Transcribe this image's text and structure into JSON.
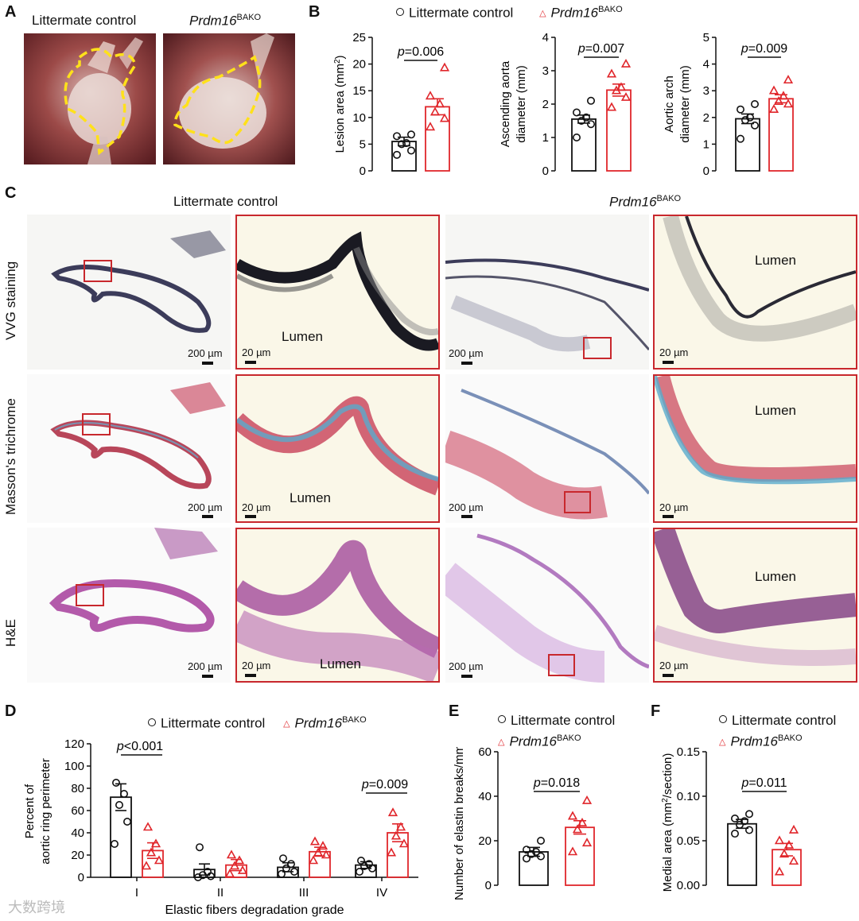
{
  "panels": {
    "A": "A",
    "B": "B",
    "C": "C",
    "D": "D",
    "E": "E",
    "F": "F"
  },
  "groups": {
    "control": "Littermate control",
    "ko_gene": "Prdm16",
    "ko_sup": "BAKO"
  },
  "colors": {
    "control": "#111111",
    "ko": "#e0262b",
    "box": "#c8282d"
  },
  "panelA": {
    "left_label": "Littermate control",
    "right_label_gene": "Prdm16",
    "right_label_sup": "BAKO"
  },
  "panelC": {
    "col_left": "Littermate control",
    "col_right_gene": "Prdm16",
    "col_right_sup": "BAKO",
    "rows": [
      "VVG staining",
      "Masson's trichrome",
      "H&E"
    ],
    "scale_low": "200 µm",
    "scale_high": "20 µm",
    "lumen": "Lumen"
  },
  "chart_data": [
    {
      "id": "B1",
      "type": "bar",
      "categories": [
        "Littermate control",
        "Prdm16BAKO"
      ],
      "values": [
        5.5,
        12.0
      ],
      "sem": [
        0.8,
        1.5
      ],
      "points": [
        [
          3.0,
          3.8,
          5.0,
          5.2,
          6.5,
          6.8
        ],
        [
          8.2,
          9.8,
          11.0,
          12.5,
          14.0,
          19.3
        ]
      ],
      "ylabel_main": "Lesion area (mm",
      "ylabel_sup": "2",
      "ylabel_end": ")",
      "ylim": [
        0,
        25
      ],
      "yticks": [
        "0",
        "5",
        "10",
        "15",
        "20",
        "25"
      ],
      "pvalue": "=0.006"
    },
    {
      "id": "B2",
      "type": "bar",
      "categories": [
        "Littermate control",
        "Prdm16BAKO"
      ],
      "values": [
        1.55,
        2.42
      ],
      "sem": [
        0.12,
        0.18
      ],
      "points": [
        [
          1.0,
          1.4,
          1.5,
          1.6,
          1.75,
          2.1
        ],
        [
          1.9,
          2.2,
          2.4,
          2.5,
          2.9,
          3.2
        ]
      ],
      "ylabel_main": "Ascending aorta",
      "ylabel_line2": "diameter (mm)",
      "ylim": [
        0,
        4
      ],
      "yticks": [
        "0",
        "1",
        "2",
        "3",
        "4"
      ],
      "pvalue": "=0.007"
    },
    {
      "id": "B3",
      "type": "bar",
      "categories": [
        "Littermate control",
        "Prdm16BAKO"
      ],
      "values": [
        1.95,
        2.7
      ],
      "sem": [
        0.18,
        0.15
      ],
      "points": [
        [
          1.2,
          1.7,
          1.9,
          2.0,
          2.3,
          2.5
        ],
        [
          2.3,
          2.5,
          2.6,
          2.8,
          3.0,
          3.4
        ]
      ],
      "ylabel_main": "Aortic arch",
      "ylabel_line2": "diameter (mm)",
      "ylim": [
        0,
        5
      ],
      "yticks": [
        "0",
        "1",
        "2",
        "3",
        "4",
        "5"
      ],
      "pvalue": "=0.009"
    },
    {
      "id": "D",
      "type": "bar",
      "categories": [
        "I",
        "II",
        "III",
        "IV"
      ],
      "series": [
        {
          "name": "Littermate control",
          "values": [
            72,
            7,
            9,
            11
          ],
          "sem": [
            12,
            5,
            4,
            3
          ],
          "points": [
            [
              30,
              50,
              65,
              75,
              85
            ],
            [
              0,
              1,
              2,
              5,
              27
            ],
            [
              3,
              5,
              8,
              12,
              17
            ],
            [
              5,
              8,
              10,
              12,
              15
            ]
          ]
        },
        {
          "name": "Prdm16BAKO",
          "values": [
            24,
            11,
            23,
            40
          ],
          "sem": [
            7,
            5,
            4,
            8
          ],
          "points": [
            [
              10,
              15,
              22,
              30,
              45
            ],
            [
              3,
              6,
              10,
              15,
              20
            ],
            [
              15,
              20,
              22,
              28,
              32
            ],
            [
              22,
              30,
              37,
              45,
              58
            ]
          ]
        }
      ],
      "ylabel_line1": "Percent of",
      "ylabel_line2": "aortic ring perimeter",
      "xlabel": "Elastic fibers degradation grade",
      "ylim": [
        0,
        120
      ],
      "yticks": [
        "0",
        "20",
        "40",
        "60",
        "80",
        "100",
        "120"
      ],
      "pvalues": [
        {
          "group": "I",
          "text": "<0.001"
        },
        {
          "group": "IV",
          "text": "=0.009"
        }
      ]
    },
    {
      "id": "E",
      "type": "bar",
      "categories": [
        "Littermate control",
        "Prdm16BAKO"
      ],
      "values": [
        15,
        26
      ],
      "sem": [
        2,
        3
      ],
      "points": [
        [
          12,
          13,
          14,
          15,
          16,
          20
        ],
        [
          15,
          19,
          25,
          28,
          31,
          38
        ]
      ],
      "ylabel": "Number of elastin breaks/mm",
      "ylim": [
        0,
        60
      ],
      "yticks": [
        "0",
        "20",
        "40",
        "60"
      ],
      "pvalue": "=0.018"
    },
    {
      "id": "F",
      "type": "bar",
      "categories": [
        "Littermate control",
        "Prdm16BAKO"
      ],
      "values": [
        0.069,
        0.04
      ],
      "sem": [
        0.005,
        0.007
      ],
      "points": [
        [
          0.058,
          0.062,
          0.068,
          0.072,
          0.075,
          0.08
        ],
        [
          0.015,
          0.027,
          0.035,
          0.045,
          0.05,
          0.062
        ]
      ],
      "ylabel_main": "Medial area (mm",
      "ylabel_sup": "2",
      "ylabel_end": "/section)",
      "ylim": [
        0,
        0.15
      ],
      "yticks": [
        "0.00",
        "0.05",
        "0.10",
        "0.15"
      ],
      "pvalue": "=0.011"
    }
  ],
  "stat": {
    "p": "p"
  },
  "watermark": "大数跨境"
}
